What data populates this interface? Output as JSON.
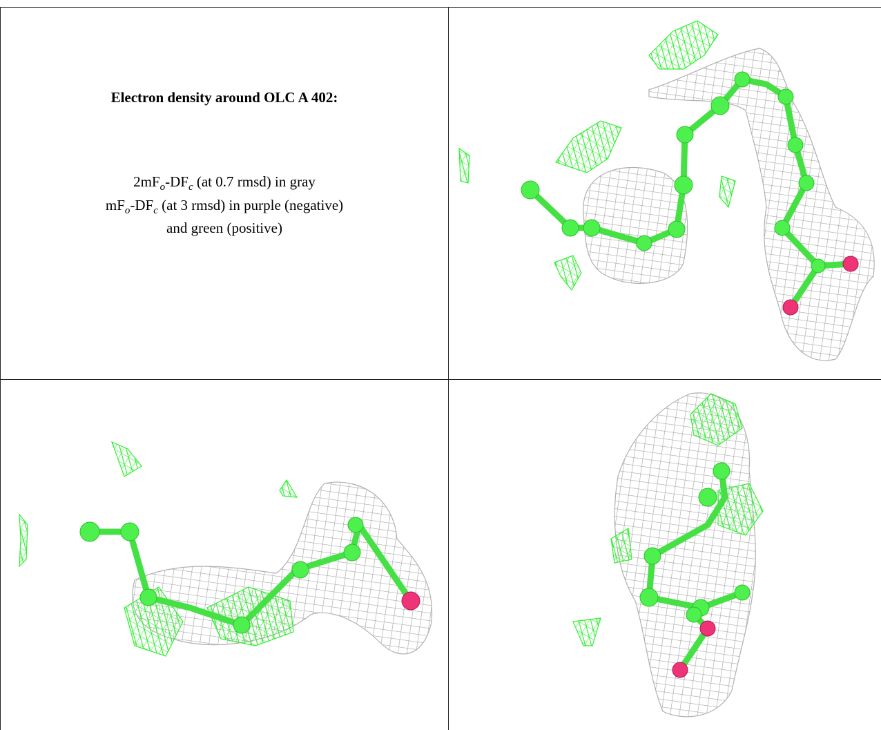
{
  "caption": {
    "title": "Electron density around OLC A 402:",
    "lines": [
      [
        "2mF",
        "o",
        "-DF",
        "c",
        " (at 0.7 rmsd) in gray"
      ],
      [
        "mF",
        "o",
        "-DF",
        "c",
        " (at 3 rmsd) in purple (negative)"
      ],
      [
        "and green (positive)"
      ]
    ]
  }
}
